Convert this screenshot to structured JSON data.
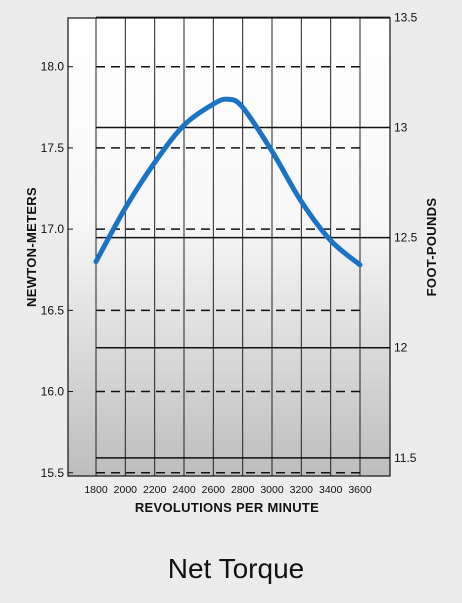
{
  "chart_data": {
    "type": "line",
    "title": "Net Torque",
    "xlabel": "REVOLUTIONS PER MINUTE",
    "ylabel": "NEWTON-METERS",
    "ylabel_right": "FOOT-POUNDS",
    "xlim": [
      1800,
      3600
    ],
    "ylim": [
      15.48,
      18.3
    ],
    "x_ticks": [
      "1800",
      "2000",
      "2200",
      "2400",
      "2600",
      "2800",
      "3000",
      "3200",
      "3400",
      "3600"
    ],
    "y_ticks_left": [
      "15.5",
      "16.0",
      "16.5",
      "17.0",
      "17.5",
      "18.0"
    ],
    "y_ticks_right": [
      "11.5",
      "12",
      "12.5",
      "13",
      "13.5"
    ],
    "grid": true,
    "series": [
      {
        "color": "#1a73c5",
        "x": [
          1800,
          2000,
          2200,
          2400,
          2600,
          2700,
          2800,
          3000,
          3200,
          3400,
          3600
        ],
        "y": [
          16.8,
          17.13,
          17.41,
          17.64,
          17.77,
          17.8,
          17.75,
          17.48,
          17.17,
          16.93,
          16.78
        ]
      }
    ]
  }
}
